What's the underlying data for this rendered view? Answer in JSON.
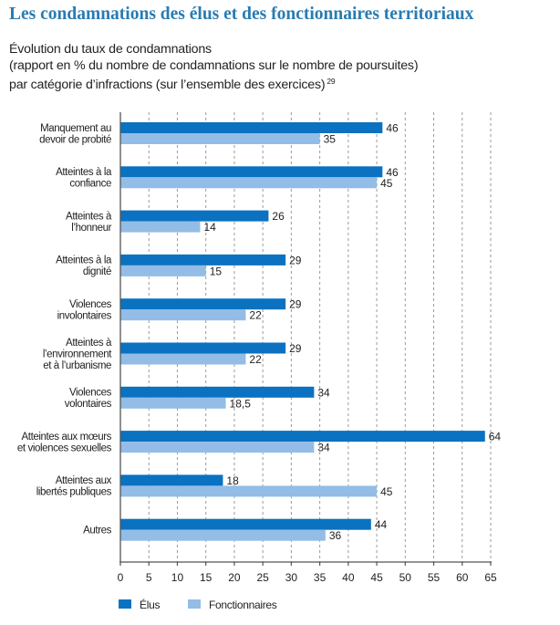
{
  "header": {
    "title": "Les condamnations des élus et des fonctionnaires territoriaux",
    "subtitle_lines": [
      "Évolution du taux de condamnations",
      "(rapport en % du nombre de condamnations sur le nombre de poursuites)",
      "par catégorie d’infractions (sur l’ensemble des exercices)"
    ],
    "footnote_ref": "29"
  },
  "colors": {
    "title": "#2a7bb2",
    "elus": "#0a72c0",
    "fonctionnaires": "#93bde6",
    "axis": "#555555",
    "grid": "#9a9a9a"
  },
  "chart_data": {
    "type": "bar",
    "orientation": "horizontal",
    "title": "Évolution du taux de condamnations",
    "xlabel": "",
    "ylabel": "",
    "xlim": [
      0,
      65
    ],
    "xticks": [
      0,
      5,
      10,
      15,
      20,
      25,
      30,
      35,
      40,
      45,
      50,
      55,
      60,
      65
    ],
    "grid": "vertical dashed",
    "legend_position": "bottom-left",
    "categories": [
      [
        "Manquement au",
        "devoir de probité"
      ],
      [
        "Atteintes à la",
        "confiance"
      ],
      [
        "Atteintes à",
        "l’honneur"
      ],
      [
        "Atteintes à la",
        "dignité"
      ],
      [
        "Violences",
        "involontaires"
      ],
      [
        "Atteintes à",
        "l’environnement",
        "et à l’urbanisme"
      ],
      [
        "Violences",
        "volontaires"
      ],
      [
        "Atteintes aux mœurs",
        "et violences sexuelles"
      ],
      [
        "Atteintes aux",
        "libertés publiques"
      ],
      [
        "Autres"
      ]
    ],
    "series": [
      {
        "name": "Élus",
        "values": [
          46,
          46,
          26,
          29,
          29,
          29,
          34,
          64,
          18,
          44
        ],
        "labels": [
          "46",
          "46",
          "26",
          "29",
          "29",
          "29",
          "34",
          "64",
          "18",
          "44"
        ]
      },
      {
        "name": "Fonctionnaires",
        "values": [
          35,
          45,
          14,
          15,
          22,
          22,
          18.5,
          34,
          45,
          36
        ],
        "labels": [
          "35",
          "45",
          "14",
          "15",
          "22",
          "22",
          "18,5",
          "34",
          "45",
          "36"
        ]
      }
    ]
  }
}
